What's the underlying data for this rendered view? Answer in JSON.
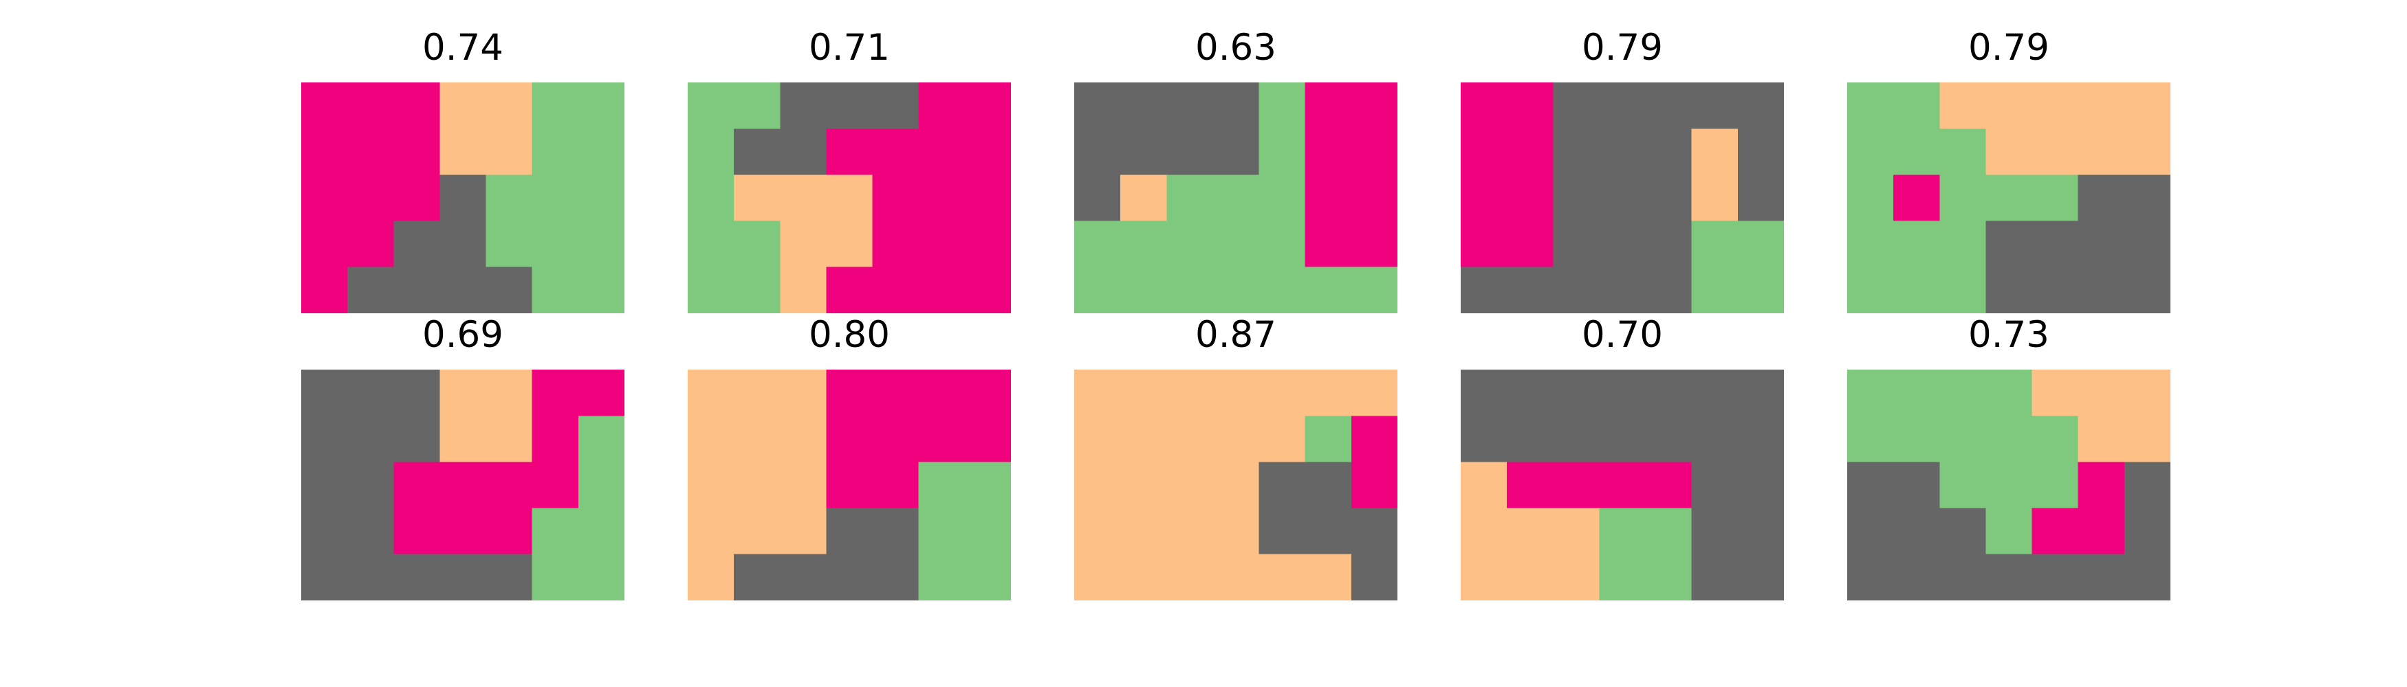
{
  "chart_data": {
    "type": "heatmap",
    "layout": {
      "rows": 2,
      "cols": 5
    },
    "colors": {
      "0": "#666666",
      "1": "#7fc97f",
      "2": "#fdc086",
      "3": "#f0027f"
    },
    "panels": [
      {
        "title": "0.74",
        "grid": [
          [
            3,
            3,
            3,
            2,
            2,
            1,
            1
          ],
          [
            3,
            3,
            3,
            2,
            2,
            1,
            1
          ],
          [
            3,
            3,
            3,
            0,
            1,
            1,
            1
          ],
          [
            3,
            3,
            0,
            0,
            1,
            1,
            1
          ],
          [
            3,
            0,
            0,
            0,
            0,
            1,
            1
          ]
        ]
      },
      {
        "title": "0.71",
        "grid": [
          [
            1,
            1,
            0,
            0,
            0,
            3,
            3
          ],
          [
            1,
            0,
            0,
            3,
            3,
            3,
            3
          ],
          [
            1,
            2,
            2,
            2,
            3,
            3,
            3
          ],
          [
            1,
            1,
            2,
            2,
            3,
            3,
            3
          ],
          [
            1,
            1,
            2,
            3,
            3,
            3,
            3
          ]
        ]
      },
      {
        "title": "0.63",
        "grid": [
          [
            0,
            0,
            0,
            0,
            1,
            3,
            3
          ],
          [
            0,
            0,
            0,
            0,
            1,
            3,
            3
          ],
          [
            0,
            2,
            1,
            1,
            1,
            3,
            3
          ],
          [
            1,
            1,
            1,
            1,
            1,
            3,
            3
          ],
          [
            1,
            1,
            1,
            1,
            1,
            1,
            1
          ]
        ]
      },
      {
        "title": "0.79",
        "grid": [
          [
            3,
            3,
            0,
            0,
            0,
            0,
            0
          ],
          [
            3,
            3,
            0,
            0,
            0,
            2,
            0
          ],
          [
            3,
            3,
            0,
            0,
            0,
            2,
            0
          ],
          [
            3,
            3,
            0,
            0,
            0,
            1,
            1
          ],
          [
            0,
            0,
            0,
            0,
            0,
            1,
            1
          ]
        ]
      },
      {
        "title": "0.79",
        "grid": [
          [
            1,
            1,
            2,
            2,
            2,
            2,
            2
          ],
          [
            1,
            1,
            1,
            2,
            2,
            2,
            2
          ],
          [
            1,
            3,
            1,
            1,
            1,
            0,
            0
          ],
          [
            1,
            1,
            1,
            0,
            0,
            0,
            0
          ],
          [
            1,
            1,
            1,
            0,
            0,
            0,
            0
          ]
        ]
      },
      {
        "title": "0.69",
        "grid": [
          [
            0,
            0,
            0,
            2,
            2,
            3,
            3
          ],
          [
            0,
            0,
            0,
            2,
            2,
            3,
            1
          ],
          [
            0,
            0,
            3,
            3,
            3,
            3,
            1
          ],
          [
            0,
            0,
            3,
            3,
            3,
            1,
            1
          ],
          [
            0,
            0,
            0,
            0,
            0,
            1,
            1
          ]
        ]
      },
      {
        "title": "0.80",
        "grid": [
          [
            2,
            2,
            2,
            3,
            3,
            3,
            3
          ],
          [
            2,
            2,
            2,
            3,
            3,
            3,
            3
          ],
          [
            2,
            2,
            2,
            3,
            3,
            1,
            1
          ],
          [
            2,
            2,
            2,
            0,
            0,
            1,
            1
          ],
          [
            2,
            0,
            0,
            0,
            0,
            1,
            1
          ]
        ]
      },
      {
        "title": "0.87",
        "grid": [
          [
            2,
            2,
            2,
            2,
            2,
            2,
            2
          ],
          [
            2,
            2,
            2,
            2,
            2,
            1,
            3
          ],
          [
            2,
            2,
            2,
            2,
            0,
            0,
            3
          ],
          [
            2,
            2,
            2,
            2,
            0,
            0,
            0
          ],
          [
            2,
            2,
            2,
            2,
            2,
            2,
            0
          ]
        ]
      },
      {
        "title": "0.70",
        "grid": [
          [
            0,
            0,
            0,
            0,
            0,
            0,
            0
          ],
          [
            0,
            0,
            0,
            0,
            0,
            0,
            0
          ],
          [
            2,
            3,
            3,
            3,
            3,
            0,
            0
          ],
          [
            2,
            2,
            2,
            1,
            1,
            0,
            0
          ],
          [
            2,
            2,
            2,
            1,
            1,
            0,
            0
          ]
        ]
      },
      {
        "title": "0.73",
        "grid": [
          [
            1,
            1,
            1,
            1,
            2,
            2,
            2
          ],
          [
            1,
            1,
            1,
            1,
            1,
            2,
            2
          ],
          [
            0,
            0,
            1,
            1,
            1,
            3,
            0
          ],
          [
            0,
            0,
            0,
            1,
            3,
            3,
            0
          ],
          [
            0,
            0,
            0,
            0,
            0,
            0,
            0
          ]
        ]
      }
    ]
  }
}
